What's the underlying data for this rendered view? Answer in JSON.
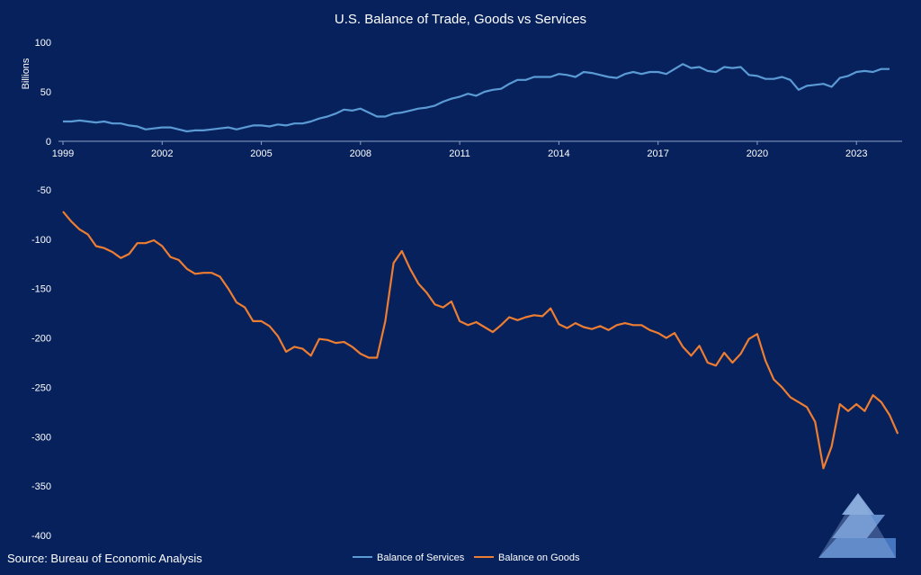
{
  "chart_data": {
    "title": "U.S. Balance of Trade, Goods vs Services",
    "source": "Source: Bureau of Economic Analysis",
    "colors": {
      "background": "#06215c",
      "services": "#5b9bd5",
      "goods": "#ed7d31",
      "text": "#ffffff"
    },
    "panels": [
      {
        "type": "line",
        "ylabel": "Billions",
        "ylim": [
          0,
          100
        ],
        "yticks": [
          0,
          50,
          100
        ],
        "xticks": [
          "1999",
          "2002",
          "2005",
          "2008",
          "2011",
          "2014",
          "2017",
          "2020",
          "2023"
        ],
        "series": [
          {
            "name": "Balance of Services",
            "color": "#5b9bd5",
            "x_start": 1999.0,
            "x_step": 0.25,
            "values": [
              20,
              20,
              21,
              20,
              19,
              20,
              18,
              18,
              16,
              15,
              12,
              13,
              14,
              14,
              12,
              10,
              11,
              11,
              12,
              13,
              14,
              12,
              14,
              16,
              16,
              15,
              17,
              16,
              18,
              18,
              20,
              23,
              25,
              28,
              32,
              31,
              33,
              29,
              25,
              25,
              28,
              29,
              31,
              33,
              34,
              36,
              40,
              43,
              45,
              48,
              46,
              50,
              52,
              53,
              58,
              62,
              62,
              65,
              65,
              65,
              68,
              67,
              65,
              70,
              69,
              67,
              65,
              64,
              68,
              70,
              68,
              70,
              70,
              68,
              73,
              78,
              74,
              75,
              71,
              70,
              75,
              74,
              75,
              67,
              66,
              63,
              63,
              65,
              62,
              52,
              56,
              57,
              58,
              55,
              64,
              66,
              70,
              71,
              70,
              73,
              73
            ]
          }
        ]
      },
      {
        "type": "line",
        "ylim": [
          -400,
          -50
        ],
        "yticks": [
          -50,
          -100,
          -150,
          -200,
          -250,
          -300,
          -350,
          -400
        ],
        "series": [
          {
            "name": "Balance on Goods",
            "color": "#ed7d31",
            "x_start": 1999.0,
            "x_step": 0.25,
            "values": [
              -72,
              -82,
              -90,
              -95,
              -107,
              -109,
              -113,
              -119,
              -115,
              -104,
              -104,
              -101,
              -107,
              -118,
              -121,
              -130,
              -135,
              -134,
              -134,
              -138,
              -150,
              -164,
              -169,
              -183,
              -183,
              -188,
              -198,
              -214,
              -209,
              -211,
              -218,
              -201,
              -202,
              -205,
              -204,
              -209,
              -216,
              -220,
              -220,
              -183,
              -124,
              -112,
              -130,
              -145,
              -154,
              -166,
              -169,
              -163,
              -183,
              -187,
              -184,
              -189,
              -194,
              -187,
              -179,
              -182,
              -179,
              -177,
              -178,
              -170,
              -186,
              -190,
              -185,
              -189,
              -191,
              -188,
              -192,
              -187,
              -185,
              -187,
              -187,
              -192,
              -195,
              -200,
              -195,
              -209,
              -218,
              -208,
              -225,
              -228,
              -215,
              -225,
              -216,
              -201,
              -196,
              -223,
              -242,
              -250,
              -260,
              -265,
              -270,
              -285,
              -332,
              -310,
              -267,
              -274,
              -267,
              -274,
              -258,
              -265,
              -278,
              -297
            ]
          }
        ]
      }
    ],
    "legend": [
      "Balance of Services",
      "Balance on Goods"
    ]
  }
}
